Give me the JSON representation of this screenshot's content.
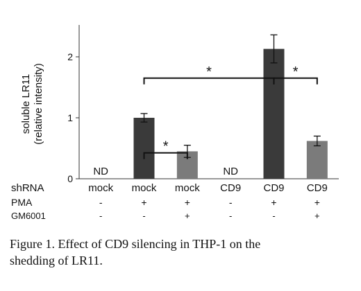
{
  "chart_data": {
    "type": "bar",
    "ylabel": "soluble LR11",
    "ylabel2": "(relative intensity)",
    "ylim": [
      0,
      2.5
    ],
    "yticks": [
      0,
      1,
      2
    ],
    "grid": false,
    "legend": "none",
    "conditions": [
      {
        "label": "shRNA",
        "values": [
          "mock",
          "mock",
          "mock",
          "CD9",
          "CD9",
          "CD9"
        ]
      },
      {
        "label": "PMA",
        "values": [
          "-",
          "+",
          "+",
          "-",
          "+",
          "+"
        ]
      },
      {
        "label": "GM6001",
        "values": [
          "-",
          "-",
          "+",
          "-",
          "-",
          "+"
        ]
      }
    ],
    "values": [
      null,
      1.0,
      0.45,
      null,
      2.13,
      0.62
    ],
    "errors": [
      null,
      0.07,
      0.1,
      null,
      0.23,
      0.08
    ],
    "value_labels": [
      "ND",
      "",
      "",
      "ND",
      "",
      ""
    ],
    "bar_colors": [
      "#3a3a3a",
      "#3a3a3a",
      "#7b7b7b",
      "#3a3a3a",
      "#3a3a3a",
      "#7b7b7b"
    ],
    "significance": [
      {
        "from": 1,
        "to": 2,
        "label": "*",
        "level": 0.17
      },
      {
        "from": 1,
        "to": 4,
        "label": "*",
        "level": 0.66
      },
      {
        "from": 4,
        "to": 5,
        "label": "*",
        "level": 0.66
      }
    ]
  },
  "caption": {
    "line1": "Figure 1. Effect of CD9 silencing in THP-1 on the",
    "line2": "shedding of LR11."
  }
}
